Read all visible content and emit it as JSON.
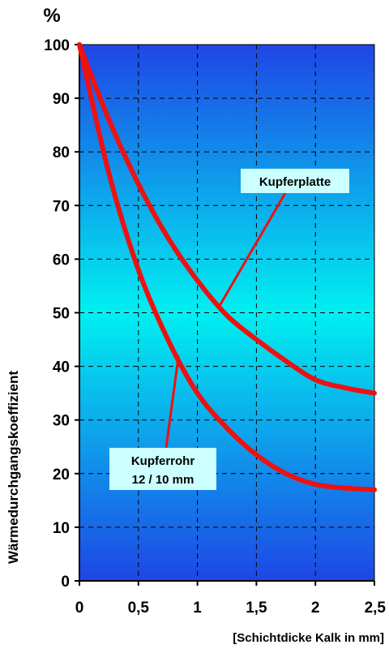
{
  "chart_data": {
    "type": "line",
    "title": "",
    "unit_label": "%",
    "xlabel": "[Schichtdicke Kalk in mm]",
    "ylabel": "Wärmedurchgangskoeffizient",
    "xlim": [
      0,
      2.5
    ],
    "ylim": [
      0,
      100
    ],
    "x_ticks": [
      0,
      0.5,
      1,
      1.5,
      2,
      2.5
    ],
    "x_tick_labels": [
      "0",
      "0,5",
      "1",
      "1,5",
      "2",
      "2,5"
    ],
    "y_ticks": [
      0,
      10,
      20,
      30,
      40,
      50,
      60,
      70,
      80,
      90,
      100
    ],
    "y_tick_labels": [
      "0",
      "10",
      "20",
      "30",
      "40",
      "50",
      "60",
      "70",
      "80",
      "90",
      "100"
    ],
    "grid": true,
    "background_gradient": [
      "#1e46e6",
      "#00f0f0",
      "#1e46e6"
    ],
    "line_color": "#ee1111",
    "series": [
      {
        "name": "Kupferplatte",
        "x": [
          0,
          0.25,
          0.5,
          0.75,
          1.0,
          1.25,
          1.5,
          1.75,
          2.0,
          2.25,
          2.5
        ],
        "y": [
          100,
          86,
          74,
          64,
          56,
          49.5,
          45,
          41,
          37.5,
          36,
          35
        ]
      },
      {
        "name": "Kupferrohr 12 / 10 mm",
        "x": [
          0,
          0.25,
          0.5,
          0.75,
          1.0,
          1.25,
          1.5,
          1.75,
          2.0,
          2.25,
          2.5
        ],
        "y": [
          100,
          76,
          58,
          45,
          35,
          28.5,
          23.5,
          20,
          18,
          17.3,
          17
        ]
      }
    ],
    "annotations": [
      {
        "lines": [
          "Kupferplatte"
        ],
        "points_to": [
          1.18,
          51
        ]
      },
      {
        "lines": [
          "Kupferrohr",
          "12 / 10 mm"
        ],
        "points_to": [
          0.84,
          42
        ]
      }
    ]
  }
}
